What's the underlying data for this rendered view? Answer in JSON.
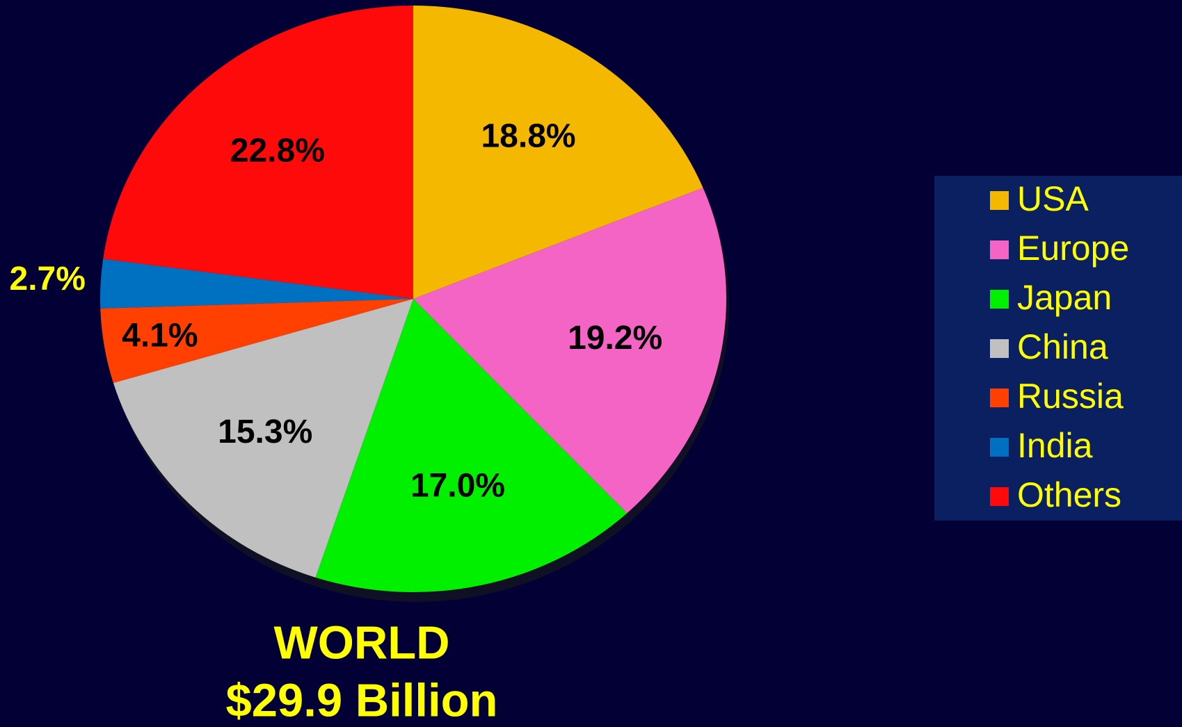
{
  "chart_data": {
    "type": "pie",
    "title": "WORLD",
    "subtitle": "$29.9 Billion",
    "categories": [
      "USA",
      "Europe",
      "Japan",
      "China",
      "Russia",
      "India",
      "Others"
    ],
    "values": [
      18.8,
      19.2,
      17.0,
      15.3,
      4.1,
      2.7,
      22.8
    ],
    "value_labels": [
      "18.8%",
      "19.2%",
      "17.0%",
      "15.3%",
      "4.1%",
      "2.7%",
      "22.8%"
    ],
    "colors": [
      "#f5b800",
      "#f464c4",
      "#00f000",
      "#c0c0c0",
      "#ff4000",
      "#0070c0",
      "#ff0a0a"
    ],
    "legend": "right"
  }
}
